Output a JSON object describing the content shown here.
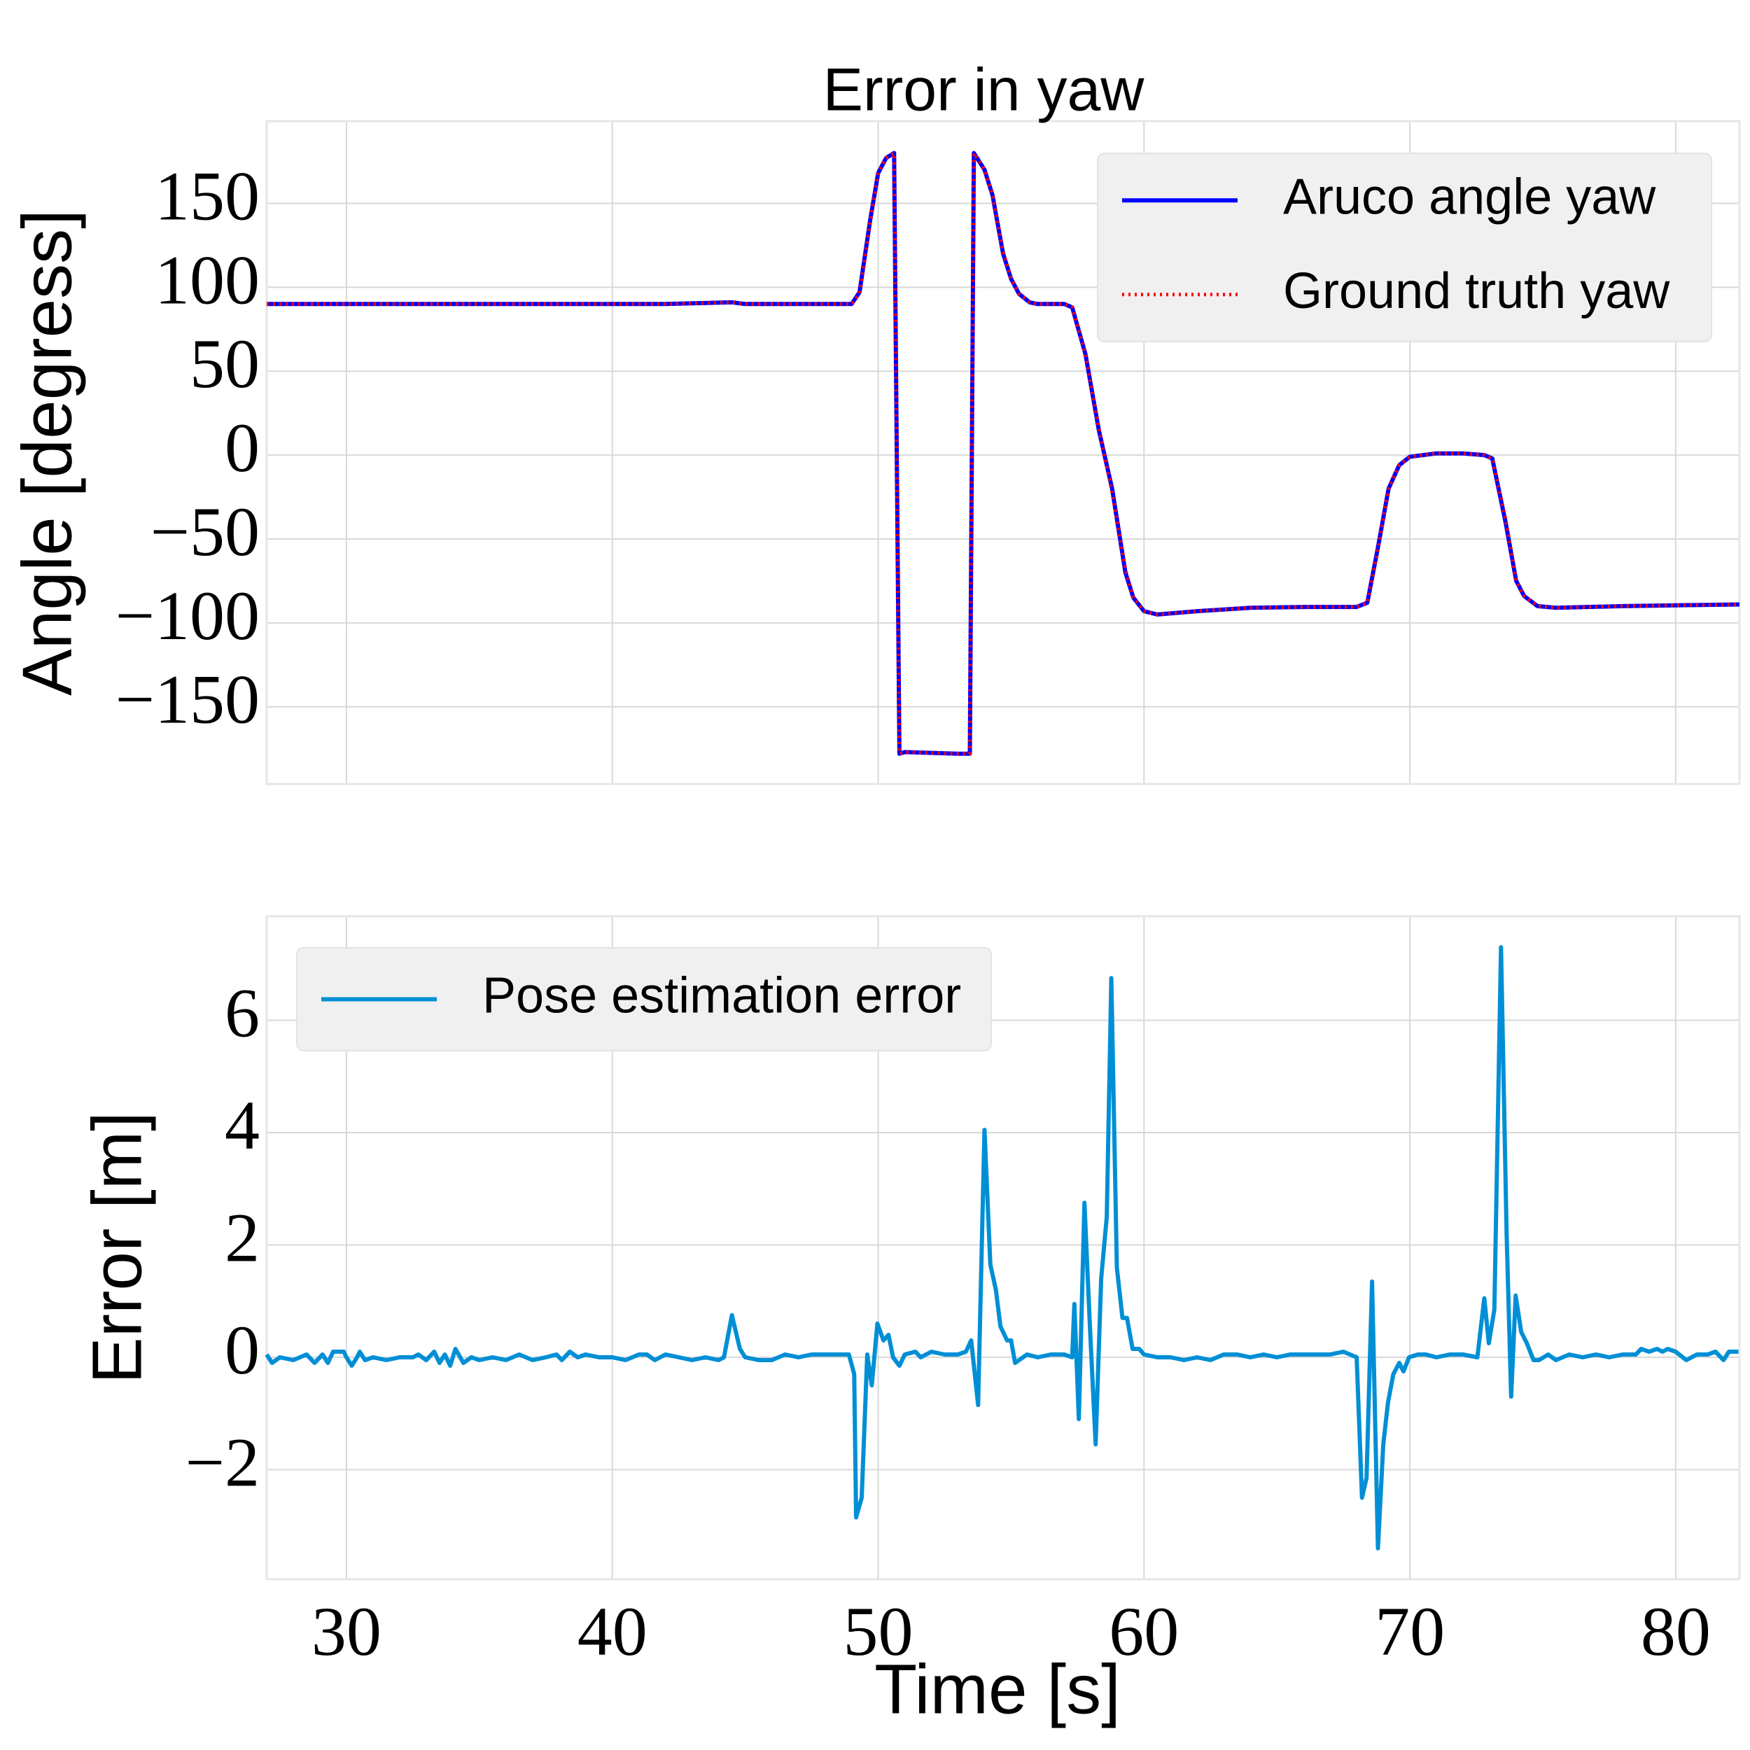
{
  "chart_data": [
    {
      "type": "line",
      "title": "Error in yaw",
      "ylabel": "Angle [degress]",
      "xlim": [
        27,
        82.4
      ],
      "ylim": [
        -196,
        199
      ],
      "xticks": [
        30,
        40,
        50,
        60,
        70,
        80
      ],
      "xtick_labels": false,
      "yticks": [
        {
          "value": -150,
          "label": "−150"
        },
        {
          "value": -100,
          "label": "−100"
        },
        {
          "value": -50,
          "label": "−50"
        },
        0,
        50,
        100,
        150
      ],
      "grid": true,
      "legend": "upper right",
      "x": [
        27,
        30,
        35,
        40,
        42,
        44.5,
        45,
        49,
        49.3,
        49.7,
        50,
        50.3,
        50.6,
        50.8,
        51,
        53,
        53.45,
        53.6,
        54,
        54.3,
        54.7,
        55,
        55.3,
        55.7,
        56,
        57,
        57.3,
        57.8,
        58.3,
        58.8,
        59.3,
        59.6,
        60,
        60.5,
        62,
        64,
        66,
        68,
        68.4,
        68.8,
        69.2,
        69.6,
        70,
        71,
        72,
        72.8,
        73.1,
        73.6,
        74,
        74.3,
        74.8,
        75.5,
        78,
        80,
        82.4
      ],
      "series": [
        {
          "name": "Aruco angle yaw",
          "color": "#0000ff",
          "linestyle": "solid",
          "values": [
            90,
            90,
            90,
            90,
            90,
            91,
            90,
            90,
            97,
            140,
            168,
            177,
            180,
            -178,
            -177,
            -178,
            -178,
            180,
            170,
            155,
            120,
            105,
            96,
            91,
            90,
            90,
            88,
            60,
            15,
            -20,
            -70,
            -85,
            -93,
            -95,
            -93,
            -91,
            -90.5,
            -90.5,
            -88,
            -55,
            -20,
            -6,
            -1,
            1,
            1,
            0,
            -2,
            -40,
            -75,
            -84,
            -90,
            -91,
            -90,
            -89.5,
            -89
          ]
        },
        {
          "name": "Ground truth yaw",
          "color": "#ff0000",
          "linestyle": "dotted",
          "values": [
            90,
            90,
            90,
            90,
            90,
            91,
            90,
            90,
            96,
            139,
            168,
            177,
            180,
            -178,
            -177,
            -178,
            -178,
            180,
            170,
            155,
            121,
            105,
            96,
            91,
            90,
            90,
            88,
            60,
            16,
            -22,
            -68,
            -85,
            -93,
            -95,
            -93,
            -91,
            -90.5,
            -90.5,
            -88,
            -56,
            -20,
            -6,
            -1,
            1,
            1,
            0,
            -2,
            -38,
            -75,
            -84,
            -90,
            -91,
            -90,
            -89.5,
            -89
          ]
        }
      ]
    },
    {
      "type": "line",
      "xlabel": "Time [s]",
      "ylabel": "Error [m]",
      "xlim": [
        27,
        82.4
      ],
      "ylim": [
        -3.95,
        7.85
      ],
      "xticks": [
        30,
        40,
        50,
        60,
        70,
        80
      ],
      "xtick_labels": true,
      "yticks": [
        {
          "value": -2,
          "label": "−2"
        },
        0,
        2,
        4,
        6
      ],
      "grid": true,
      "legend": "upper left",
      "x": [
        27,
        27.2,
        27.5,
        28,
        28.5,
        28.8,
        29.1,
        29.3,
        29.5,
        29.9,
        30,
        30.2,
        30.4,
        30.5,
        30.7,
        31,
        31.5,
        32,
        32.5,
        32.7,
        33,
        33.3,
        33.5,
        33.7,
        33.9,
        34.1,
        34.4,
        34.7,
        35,
        35.5,
        36,
        36.5,
        37,
        37.5,
        37.9,
        38.1,
        38.4,
        38.7,
        39,
        39.5,
        40,
        40.5,
        41,
        41.3,
        41.6,
        42,
        42.5,
        43,
        43.5,
        44,
        44.2,
        44.5,
        44.8,
        45,
        45.5,
        46,
        46.5,
        47,
        47.5,
        48,
        48.5,
        48.9,
        49.1,
        49.17,
        49.38,
        49.59,
        49.76,
        49.97,
        50.2,
        50.39,
        50.56,
        50.8,
        51,
        51.4,
        51.6,
        52,
        52.5,
        53,
        53.3,
        53.5,
        53.76,
        54,
        54.22,
        54.43,
        54.6,
        54.85,
        55,
        55.15,
        55.6,
        56,
        56.5,
        57,
        57.3,
        57.38,
        57.55,
        57.76,
        57.97,
        58.18,
        58.39,
        58.6,
        58.77,
        58.98,
        59.19,
        59.36,
        59.57,
        59.82,
        60,
        60.5,
        61,
        61.5,
        62,
        62.5,
        63,
        63.5,
        64,
        64.5,
        65,
        65.5,
        66,
        66.5,
        67,
        67.5,
        68,
        68.2,
        68.37,
        68.58,
        68.8,
        69,
        69.18,
        69.38,
        69.6,
        69.76,
        69.97,
        70.3,
        70.6,
        71,
        71.5,
        72,
        72.54,
        72.8,
        72.97,
        73.18,
        73.43,
        73.64,
        73.81,
        73.98,
        74.19,
        74.4,
        74.65,
        74.86,
        75.2,
        75.5,
        76,
        76.5,
        77,
        77.5,
        78,
        78.5,
        78.7,
        79,
        79.3,
        79.5,
        79.7,
        80,
        80.4,
        80.8,
        81.2,
        81.5,
        81.8,
        82,
        82.36
      ],
      "series": [
        {
          "name": "Pose estimation error",
          "color": "#008fd5",
          "linestyle": "solid",
          "values": [
            0.05,
            -0.1,
            0,
            -0.05,
            0.05,
            -0.1,
            0.05,
            -0.1,
            0.1,
            0.1,
            0,
            -0.15,
            0,
            0.1,
            -0.05,
            0,
            -0.05,
            0,
            0,
            0.05,
            -0.05,
            0.1,
            -0.1,
            0.05,
            -0.15,
            0.15,
            -0.1,
            0,
            -0.05,
            0,
            -0.05,
            0.05,
            -0.05,
            0,
            0.05,
            -0.05,
            0.1,
            0,
            0.05,
            0,
            0,
            -0.05,
            0.05,
            0.05,
            -0.05,
            0.05,
            0,
            -0.05,
            0,
            -0.05,
            0,
            0.75,
            0.15,
            0,
            -0.05,
            -0.05,
            0.05,
            0,
            0.05,
            0.05,
            0.05,
            0.05,
            -0.3,
            -2.85,
            -2.5,
            0.05,
            -0.5,
            0.6,
            0.3,
            0.4,
            0,
            -0.15,
            0.05,
            0.1,
            0,
            0.1,
            0.05,
            0.05,
            0.1,
            0.3,
            -0.85,
            4.05,
            1.65,
            1.2,
            0.55,
            0.3,
            0.3,
            -0.1,
            0.05,
            0,
            0.05,
            0.05,
            0,
            0.95,
            -1.1,
            2.75,
            0.5,
            -1.55,
            1.4,
            2.5,
            6.75,
            1.6,
            0.7,
            0.7,
            0.15,
            0.15,
            0.05,
            0,
            0,
            -0.05,
            0,
            -0.05,
            0.05,
            0.05,
            0,
            0.05,
            0,
            0.05,
            0.05,
            0.05,
            0.05,
            0.1,
            0,
            -2.5,
            -2.15,
            1.35,
            -3.4,
            -1.55,
            -0.8,
            -0.3,
            -0.1,
            -0.25,
            0,
            0.05,
            0.05,
            0,
            0.05,
            0.05,
            0,
            1.05,
            0.25,
            0.85,
            7.3,
            2.2,
            -0.7,
            1.1,
            0.45,
            0.25,
            -0.05,
            -0.05,
            0.05,
            -0.05,
            0.05,
            0,
            0.05,
            0,
            0.05,
            0.05,
            0.15,
            0.1,
            0.15,
            0.1,
            0.15,
            0.1,
            -0.05,
            0.05,
            0.05,
            0.1,
            -0.05,
            0.1,
            0.1
          ]
        }
      ]
    }
  ]
}
